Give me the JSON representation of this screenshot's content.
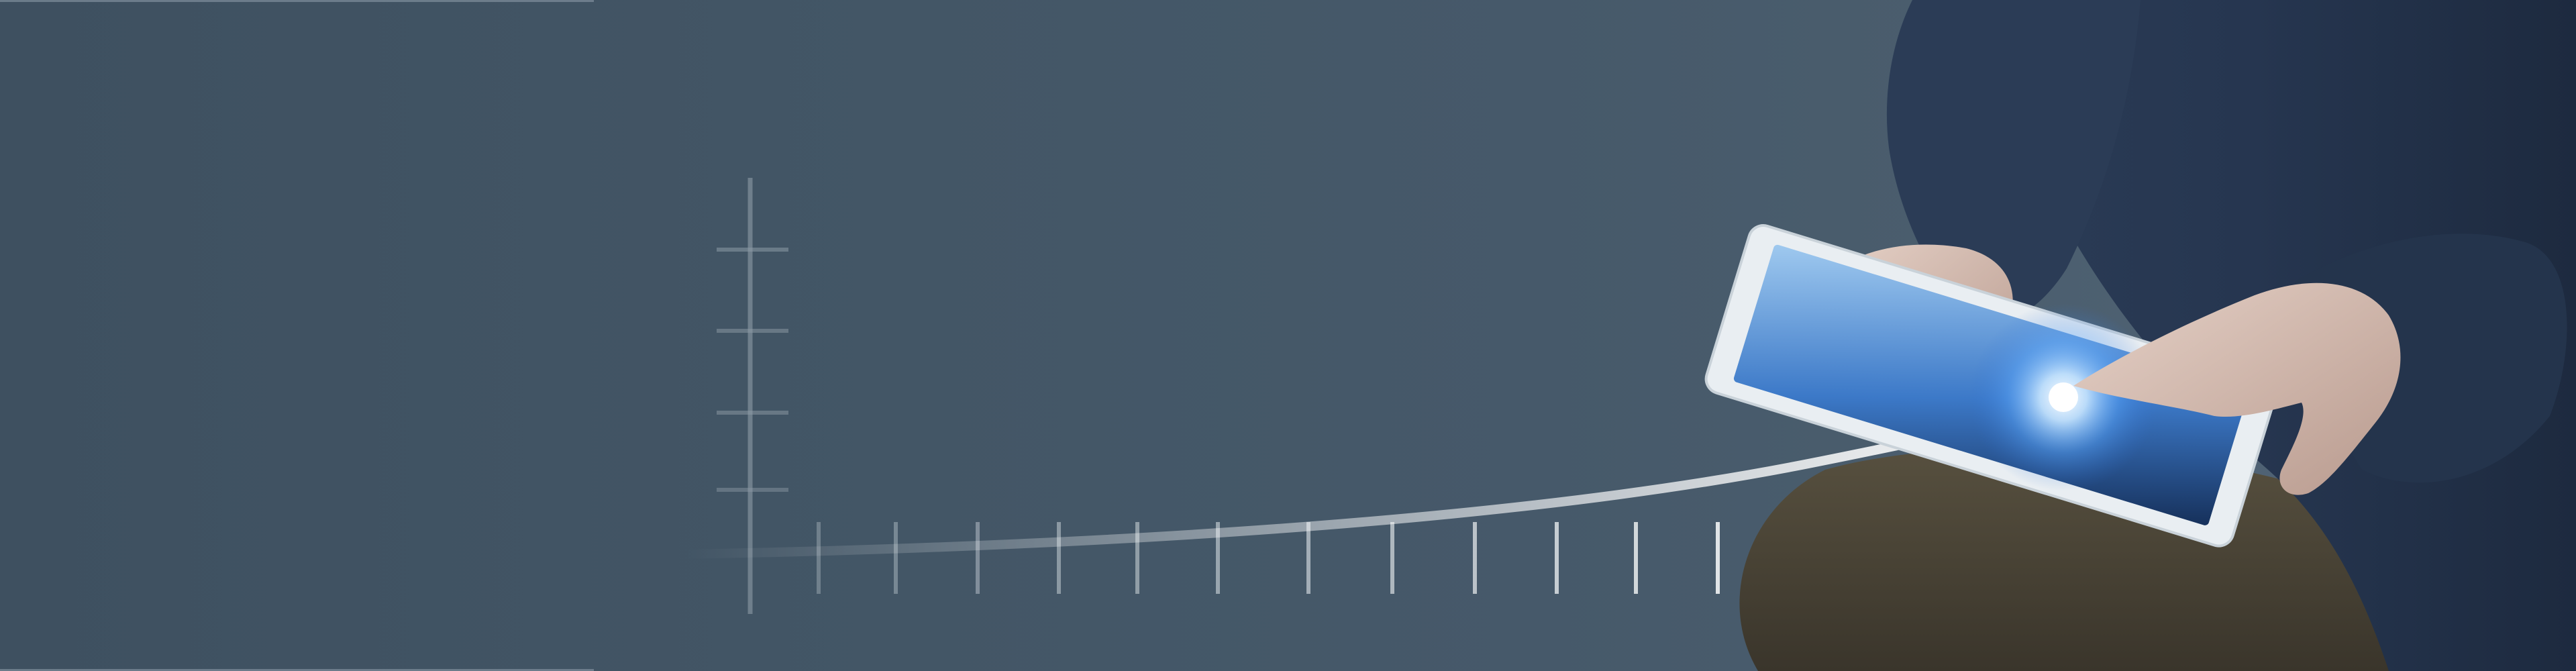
{
  "image": {
    "type": "banner-photo",
    "subject": "person-using-tablet-with-growth-curve",
    "colors": {
      "background": "#435666",
      "jacket": "#2a3a52",
      "trousers": "#4b4538",
      "skin": "#d8c2b8",
      "tablet_frame": "#e9eef2",
      "screen_glow": "#7fc2ff",
      "axis": "#8d9ba6"
    }
  }
}
